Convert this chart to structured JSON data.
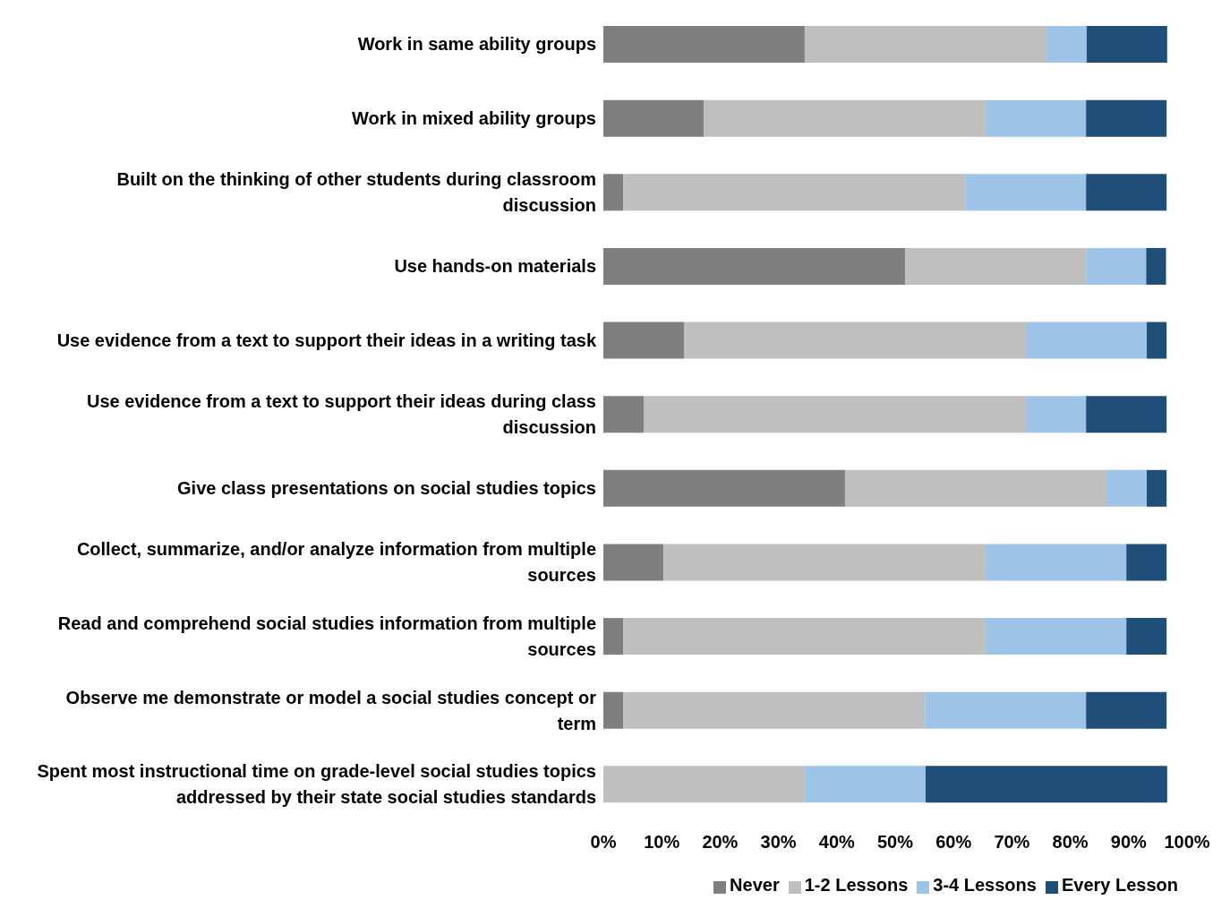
{
  "chart_data": {
    "type": "bar",
    "orientation": "horizontal",
    "stacked": true,
    "categories": [
      "Work in same ability groups",
      "Work in mixed ability groups",
      "Built on the thinking of other students during classroom discussion",
      "Use hands-on materials",
      "Use evidence from a text to support their ideas in a writing task",
      "Use evidence from a text to support their ideas during class discussion",
      "Give class presentations on social studies topics",
      "Collect, summarize, and/or analyze information from multiple sources",
      "Read and comprehend social studies information from multiple sources",
      "Observe me demonstrate or model a social studies concept or term",
      "Spent most instructional time on grade-level social studies topics addressed by their state social studies standards"
    ],
    "series": [
      {
        "name": "Never",
        "color": "#7f7f7f",
        "values": [
          34.5,
          17.2,
          3.4,
          51.7,
          13.8,
          6.9,
          41.4,
          10.3,
          3.4,
          3.4,
          0
        ]
      },
      {
        "name": "1-2 Lessons",
        "color": "#bfbfbf",
        "values": [
          41.4,
          48.3,
          58.6,
          31.0,
          58.6,
          65.5,
          44.8,
          55.2,
          62.1,
          51.7,
          34.5
        ]
      },
      {
        "name": "3-4 Lessons",
        "color": "#9dc3e6",
        "values": [
          6.9,
          17.2,
          20.7,
          10.3,
          20.7,
          10.3,
          6.9,
          24.1,
          24.1,
          27.6,
          20.7
        ]
      },
      {
        "name": "Every Lesson",
        "color": "#1f4e79",
        "values": [
          13.8,
          13.8,
          13.8,
          3.4,
          3.4,
          13.8,
          3.4,
          6.9,
          6.9,
          13.8,
          41.4
        ]
      }
    ],
    "xlim": [
      0,
      100
    ],
    "xticks": [
      {
        "value": 0,
        "label": "0%"
      },
      {
        "value": 10,
        "label": "10%"
      },
      {
        "value": 20,
        "label": "20%"
      },
      {
        "value": 30,
        "label": "30%"
      },
      {
        "value": 40,
        "label": "40%"
      },
      {
        "value": 50,
        "label": "50%"
      },
      {
        "value": 60,
        "label": "60%"
      },
      {
        "value": 70,
        "label": "70%"
      },
      {
        "value": 80,
        "label": "80%"
      },
      {
        "value": 90,
        "label": "90%"
      },
      {
        "value": 100,
        "label": "100%"
      }
    ],
    "grid": false,
    "legend": "bottom"
  }
}
